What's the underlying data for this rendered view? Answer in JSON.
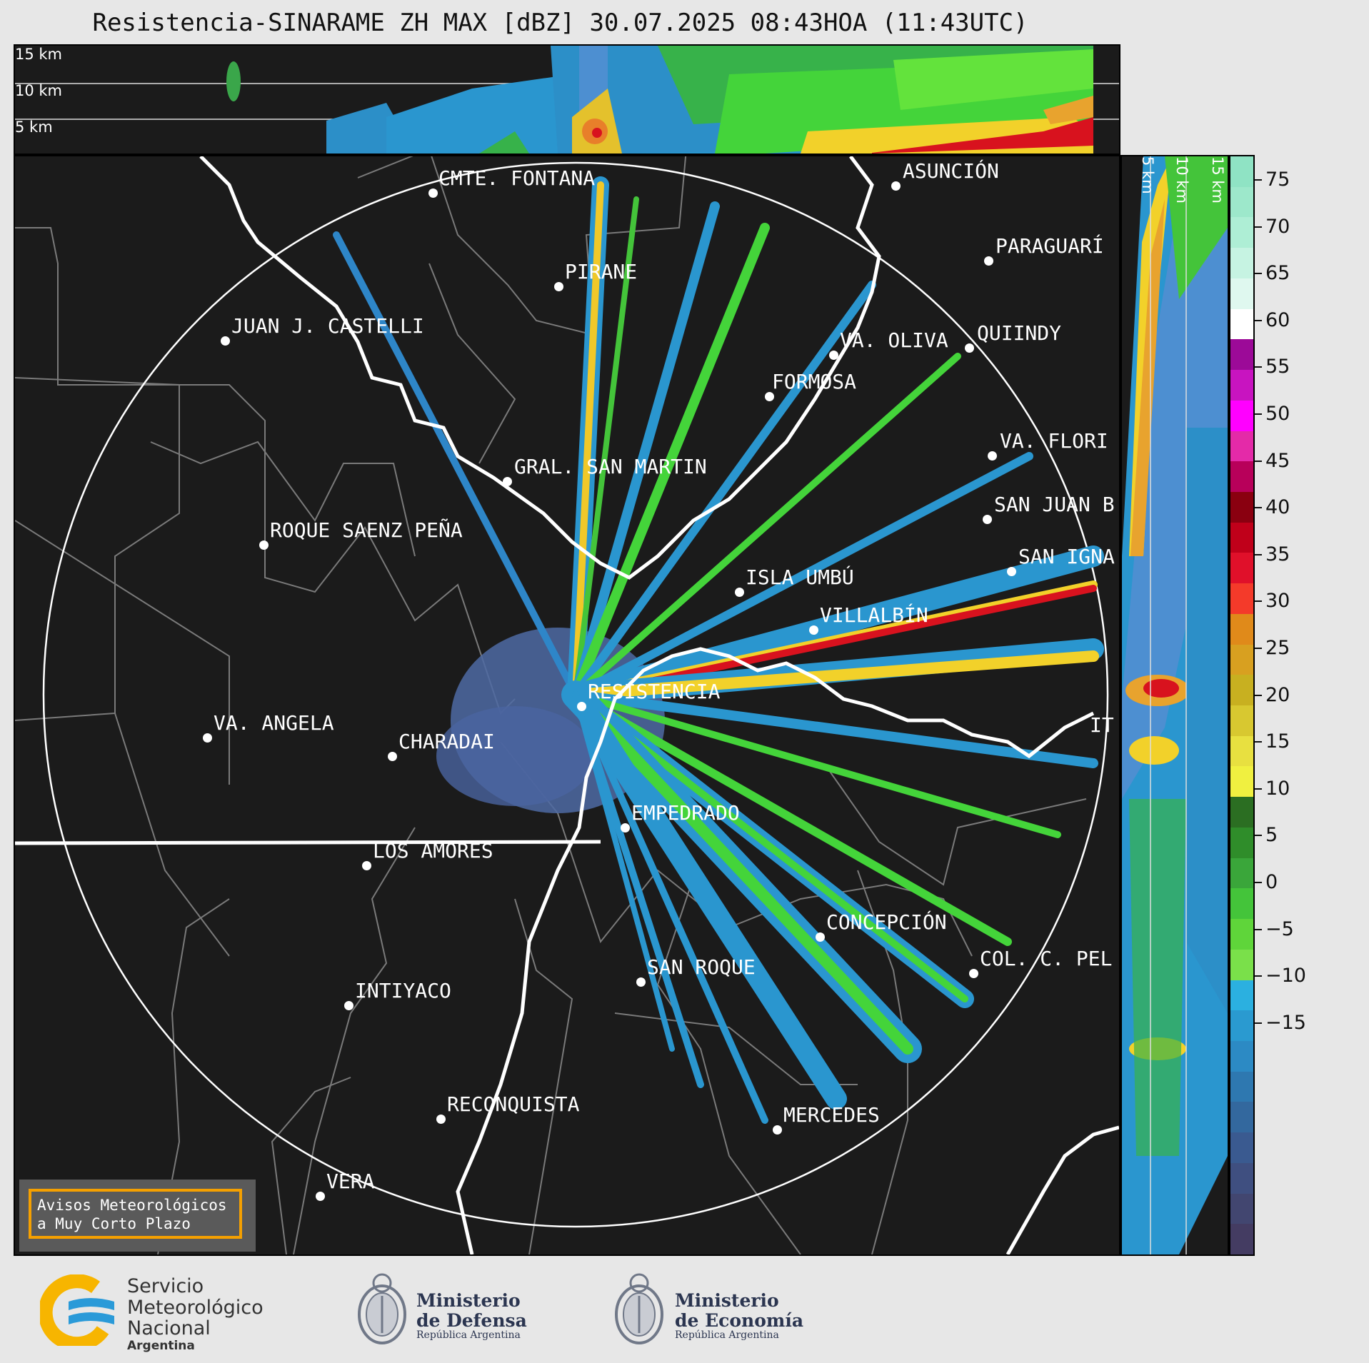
{
  "title": "Resistencia-SINARAME ZH MAX [dBZ] 30.07.2025 08:43HOA (11:43UTC)",
  "top_panel": {
    "labels": [
      "15 km",
      "10 km",
      "5 km"
    ]
  },
  "side_panel": {
    "labels": [
      "5 km",
      "10 km",
      "15 km"
    ]
  },
  "cities": [
    {
      "name": "CMTE. FONTANA"
    },
    {
      "name": "ASUNCIÓN"
    },
    {
      "name": "PIRANE"
    },
    {
      "name": "PARAGUARÍ"
    },
    {
      "name": "JUAN J. CASTELLI"
    },
    {
      "name": "VA. OLIVA"
    },
    {
      "name": "QUIINDY"
    },
    {
      "name": "FORMOSA"
    },
    {
      "name": "VA. FLORI"
    },
    {
      "name": "GRAL. SAN MARTIN"
    },
    {
      "name": "SAN JUAN B"
    },
    {
      "name": "ROQUE SAENZ PEÑA"
    },
    {
      "name": "SAN IGNA"
    },
    {
      "name": "ISLA UMBÚ"
    },
    {
      "name": "VILLALBÍN"
    },
    {
      "name": "RESISTENCIA"
    },
    {
      "name": "IT"
    },
    {
      "name": "VA. ANGELA"
    },
    {
      "name": "CHARADAI"
    },
    {
      "name": "EMPEDRADO"
    },
    {
      "name": "LOS AMORES"
    },
    {
      "name": "CONCEPCIÓN"
    },
    {
      "name": "COL. C. PEL"
    },
    {
      "name": "SAN ROQUE"
    },
    {
      "name": "INTIYACO"
    },
    {
      "name": "RECONQUISTA"
    },
    {
      "name": "MERCEDES"
    },
    {
      "name": "VERA"
    }
  ],
  "colorbar": {
    "unit": "dBZ",
    "ticks": [
      "75",
      "70",
      "65",
      "60",
      "55",
      "50",
      "45",
      "40",
      "35",
      "30",
      "25",
      "20",
      "15",
      "10",
      "5",
      "0",
      "−5",
      "−10",
      "−15"
    ]
  },
  "avisos": {
    "line1": "Avisos Meteorológicos",
    "line2": "a Muy Corto Plazo"
  },
  "logos": {
    "smn": {
      "line1": "Servicio",
      "line2": "Meteorológico",
      "line3": "Nacional",
      "line4": "Argentina"
    },
    "defensa": {
      "line1": "Ministerio",
      "line2": "de Defensa",
      "line3": "República Argentina"
    },
    "economia": {
      "line1": "Ministerio",
      "line2": "de Economía",
      "line3": "República Argentina"
    }
  },
  "colors": {
    "accent_orange": "#f5a000",
    "smn_blue": "#2a9ad8",
    "smn_yellow": "#f7b500"
  }
}
